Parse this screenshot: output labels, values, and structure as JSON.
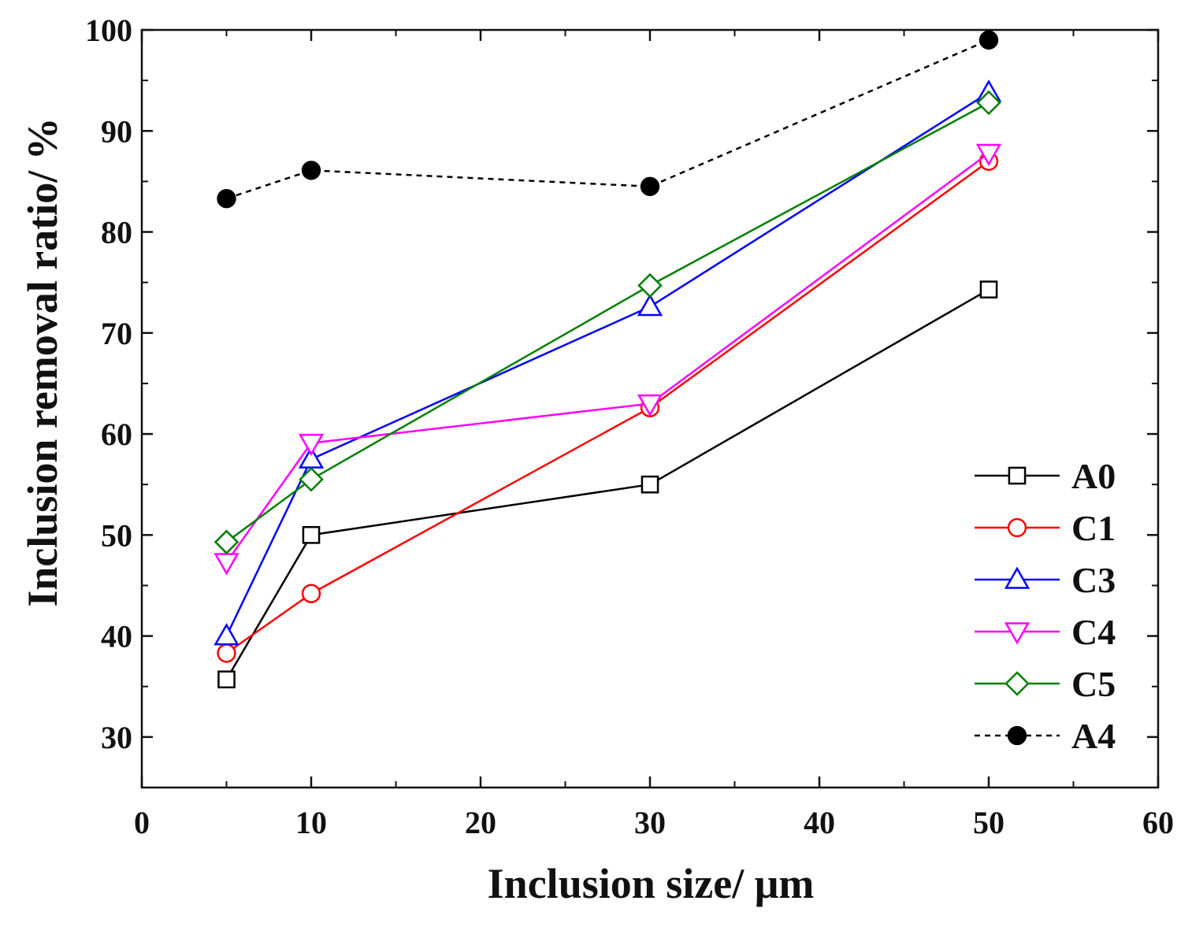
{
  "chart_data": {
    "type": "line",
    "title": "",
    "xlabel": "Inclusion size/ μm",
    "ylabel": "Inclusion removal ratio/ %",
    "xlim": [
      0,
      60
    ],
    "ylim": [
      25,
      100
    ],
    "xticks": [
      0,
      10,
      20,
      30,
      40,
      50,
      60
    ],
    "yticks": [
      30,
      40,
      50,
      60,
      70,
      80,
      90,
      100
    ],
    "xtick_labels": [
      "0",
      "10",
      "20",
      "30",
      "40",
      "50",
      "60"
    ],
    "ytick_labels": [
      "30",
      "40",
      "50",
      "60",
      "70",
      "80",
      "90",
      "100"
    ],
    "grid": false,
    "legend_position": "lower-right",
    "series": [
      {
        "name": "A0",
        "color": "#000000",
        "marker": "square",
        "marker_fill": "open",
        "line_style": "solid",
        "x": [
          5,
          10,
          30,
          50
        ],
        "y": [
          35.7,
          50.0,
          55.0,
          74.3
        ]
      },
      {
        "name": "C1",
        "color": "#ff0000",
        "marker": "circle",
        "marker_fill": "open",
        "line_style": "solid",
        "x": [
          5,
          10,
          30,
          50
        ],
        "y": [
          38.3,
          44.2,
          62.6,
          87.0
        ]
      },
      {
        "name": "C3",
        "color": "#0000ff",
        "marker": "triangle-up",
        "marker_fill": "open",
        "line_style": "solid",
        "x": [
          5,
          10,
          30,
          50
        ],
        "y": [
          40.0,
          57.5,
          72.6,
          93.8
        ]
      },
      {
        "name": "C4",
        "color": "#ff00ff",
        "marker": "triangle-down",
        "marker_fill": "open",
        "line_style": "solid",
        "x": [
          5,
          10,
          30,
          50
        ],
        "y": [
          47.3,
          59.1,
          63.0,
          87.8
        ]
      },
      {
        "name": "C5",
        "color": "#008000",
        "marker": "diamond",
        "marker_fill": "open",
        "line_style": "solid",
        "x": [
          5,
          10,
          30,
          50
        ],
        "y": [
          49.3,
          55.5,
          74.7,
          92.8
        ]
      },
      {
        "name": "A4",
        "color": "#000000",
        "marker": "circle",
        "marker_fill": "filled",
        "line_style": "dashed",
        "x": [
          5,
          10,
          30,
          50
        ],
        "y": [
          83.3,
          86.1,
          84.5,
          99.0
        ]
      }
    ]
  }
}
